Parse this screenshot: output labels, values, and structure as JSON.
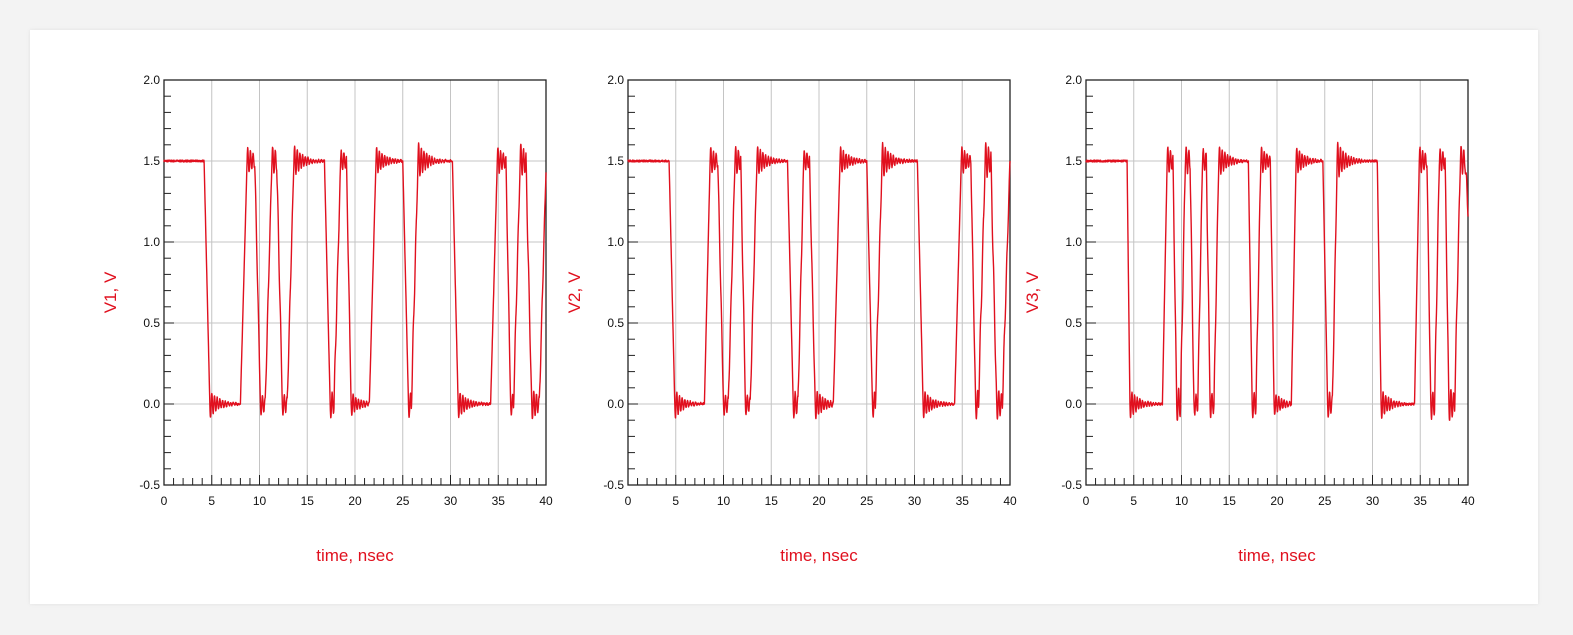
{
  "chart_data": [
    {
      "type": "line",
      "xlabel": "time, nsec",
      "ylabel": "V1, V",
      "xlim": [
        0,
        40
      ],
      "ylim": [
        -0.5,
        2.0
      ],
      "xticks": [
        "0",
        "5",
        "10",
        "15",
        "20",
        "25",
        "30",
        "35",
        "40"
      ],
      "yticks": [
        "-0.5",
        "0.0",
        "0.5",
        "1.0",
        "1.5",
        "2.0"
      ],
      "grid": true,
      "color": "#e0101e",
      "levels": [
        [
          0,
          1.5
        ],
        [
          4.2,
          1.5
        ],
        [
          4.8,
          0
        ],
        [
          8.0,
          0
        ],
        [
          8.7,
          1.5
        ],
        [
          9.5,
          1.5
        ],
        [
          10.1,
          0
        ],
        [
          10.6,
          0
        ],
        [
          11.3,
          1.5
        ],
        [
          11.8,
          1.5
        ],
        [
          12.4,
          0
        ],
        [
          12.9,
          0
        ],
        [
          13.6,
          1.5
        ],
        [
          16.8,
          1.5
        ],
        [
          17.4,
          0
        ],
        [
          17.8,
          0
        ],
        [
          18.5,
          1.5
        ],
        [
          19.1,
          1.5
        ],
        [
          19.6,
          0
        ],
        [
          21.5,
          0
        ],
        [
          22.2,
          1.5
        ],
        [
          25.0,
          1.5
        ],
        [
          25.6,
          0
        ],
        [
          25.9,
          0
        ],
        [
          26.6,
          1.5
        ],
        [
          30.2,
          1.5
        ],
        [
          30.8,
          0
        ],
        [
          34.2,
          0
        ],
        [
          34.9,
          1.5
        ],
        [
          35.8,
          1.5
        ],
        [
          36.3,
          0
        ],
        [
          36.6,
          0
        ],
        [
          37.3,
          1.5
        ],
        [
          37.9,
          1.5
        ],
        [
          38.5,
          0
        ],
        [
          39.3,
          0
        ],
        [
          40,
          1.45
        ]
      ]
    },
    {
      "type": "line",
      "xlabel": "time, nsec",
      "ylabel": "V2, V",
      "xlim": [
        0,
        40
      ],
      "ylim": [
        -0.5,
        2.0
      ],
      "xticks": [
        "0",
        "5",
        "10",
        "15",
        "20",
        "25",
        "30",
        "35",
        "40"
      ],
      "yticks": [
        "-0.5",
        "0.0",
        "0.5",
        "1.0",
        "1.5",
        "2.0"
      ],
      "grid": true,
      "color": "#e0101e",
      "levels": [
        [
          0,
          1.5
        ],
        [
          4.3,
          1.5
        ],
        [
          4.9,
          0
        ],
        [
          8.0,
          0
        ],
        [
          8.6,
          1.5
        ],
        [
          9.4,
          1.5
        ],
        [
          10.0,
          0
        ],
        [
          10.5,
          0
        ],
        [
          11.2,
          1.5
        ],
        [
          11.8,
          1.5
        ],
        [
          12.3,
          0
        ],
        [
          12.8,
          0
        ],
        [
          13.5,
          1.5
        ],
        [
          16.7,
          1.5
        ],
        [
          17.3,
          0
        ],
        [
          17.8,
          0
        ],
        [
          18.4,
          1.5
        ],
        [
          19.0,
          1.5
        ],
        [
          19.6,
          0
        ],
        [
          21.5,
          0
        ],
        [
          22.2,
          1.5
        ],
        [
          25.0,
          1.5
        ],
        [
          25.6,
          0
        ],
        [
          25.9,
          0
        ],
        [
          26.6,
          1.5
        ],
        [
          30.3,
          1.5
        ],
        [
          30.9,
          0
        ],
        [
          34.2,
          0
        ],
        [
          34.9,
          1.5
        ],
        [
          35.9,
          1.5
        ],
        [
          36.4,
          0
        ],
        [
          36.7,
          0
        ],
        [
          37.4,
          1.5
        ],
        [
          38.0,
          1.5
        ],
        [
          38.6,
          0
        ],
        [
          39.2,
          0
        ],
        [
          40,
          1.5
        ]
      ]
    },
    {
      "type": "line",
      "xlabel": "time, nsec",
      "ylabel": "V3, V",
      "xlim": [
        0,
        40
      ],
      "ylim": [
        -0.5,
        2.0
      ],
      "xticks": [
        "0",
        "5",
        "10",
        "15",
        "20",
        "25",
        "30",
        "35",
        "40"
      ],
      "yticks": [
        "-0.5",
        "0.0",
        "0.5",
        "1.0",
        "1.5",
        "2.0"
      ],
      "grid": true,
      "color": "#e0101e",
      "levels": [
        [
          0,
          1.5
        ],
        [
          4.3,
          1.5
        ],
        [
          4.6,
          0
        ],
        [
          8.0,
          0
        ],
        [
          8.5,
          1.5
        ],
        [
          9.1,
          1.5
        ],
        [
          9.5,
          0
        ],
        [
          9.9,
          0
        ],
        [
          10.4,
          1.5
        ],
        [
          10.9,
          1.5
        ],
        [
          11.3,
          0
        ],
        [
          11.7,
          0
        ],
        [
          12.2,
          1.5
        ],
        [
          12.6,
          1.5
        ],
        [
          13.0,
          0
        ],
        [
          13.4,
          0
        ],
        [
          13.9,
          1.5
        ],
        [
          17.0,
          1.5
        ],
        [
          17.4,
          0
        ],
        [
          17.8,
          0
        ],
        [
          18.3,
          1.5
        ],
        [
          19.3,
          1.5
        ],
        [
          19.7,
          0
        ],
        [
          21.5,
          0
        ],
        [
          22.0,
          1.5
        ],
        [
          24.8,
          1.5
        ],
        [
          25.3,
          0
        ],
        [
          25.8,
          0
        ],
        [
          26.3,
          1.5
        ],
        [
          30.5,
          1.5
        ],
        [
          30.9,
          0
        ],
        [
          34.4,
          0
        ],
        [
          34.9,
          1.5
        ],
        [
          35.7,
          1.5
        ],
        [
          36.1,
          0
        ],
        [
          36.5,
          0
        ],
        [
          37.0,
          1.5
        ],
        [
          37.6,
          1.5
        ],
        [
          38.0,
          0
        ],
        [
          38.6,
          0
        ],
        [
          39.2,
          1.5
        ],
        [
          39.7,
          1.5
        ],
        [
          40,
          1.2
        ]
      ]
    }
  ]
}
